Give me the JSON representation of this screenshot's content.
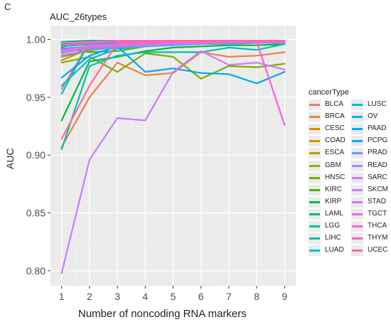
{
  "panel_letter": "C",
  "chart_data": {
    "type": "line",
    "title": "AUC_26types",
    "xlabel": "Number of noncoding RNA markers",
    "ylabel": "AUC",
    "x": [
      1,
      2,
      3,
      4,
      5,
      6,
      7,
      8,
      9
    ],
    "xlim": [
      0.6,
      9.4
    ],
    "ylim": [
      0.787,
      1.012
    ],
    "yticks": [
      0.8,
      0.85,
      0.9,
      0.95,
      1.0
    ],
    "ytick_labels": [
      "0.80",
      "0.85",
      "0.90",
      "0.95",
      "1.00"
    ],
    "grid": true,
    "background": "#ebebeb",
    "legend_title": "cancerType",
    "legend_position": "right",
    "series": [
      {
        "name": "BLCA",
        "color": "#F8766D",
        "values": [
          0.957,
          0.998,
          0.999,
          0.999,
          0.999,
          0.999,
          0.999,
          0.999,
          0.999
        ]
      },
      {
        "name": "BRCA",
        "color": "#ED813E",
        "values": [
          0.907,
          0.95,
          0.98,
          0.969,
          0.971,
          0.989,
          0.985,
          0.986,
          0.989
        ]
      },
      {
        "name": "CESC",
        "color": "#DE8C00",
        "values": [
          0.985,
          0.99,
          0.996,
          0.995,
          0.997,
          0.997,
          0.997,
          0.998,
          0.998
        ]
      },
      {
        "name": "COAD",
        "color": "#CD9600",
        "values": [
          0.988,
          0.993,
          0.995,
          0.996,
          0.997,
          0.997,
          0.998,
          0.998,
          0.998
        ]
      },
      {
        "name": "ESCA",
        "color": "#B79F00",
        "values": [
          0.982,
          0.992,
          0.994,
          0.995,
          0.996,
          0.997,
          0.997,
          0.998,
          0.998
        ]
      },
      {
        "name": "GBM",
        "color": "#9DA700",
        "values": [
          0.99,
          0.995,
          0.996,
          0.997,
          0.997,
          0.998,
          0.998,
          0.998,
          0.998
        ]
      },
      {
        "name": "HNSC",
        "color": "#7CAE00",
        "values": [
          0.98,
          0.985,
          0.972,
          0.988,
          0.985,
          0.966,
          0.977,
          0.976,
          0.979
        ]
      },
      {
        "name": "KIRC",
        "color": "#49B500",
        "values": [
          0.993,
          0.989,
          0.99,
          0.994,
          0.996,
          0.996,
          0.997,
          0.997,
          0.998
        ]
      },
      {
        "name": "KIRP",
        "color": "#00BA38",
        "values": [
          0.93,
          0.981,
          0.985,
          0.99,
          0.993,
          0.994,
          0.995,
          0.995,
          0.996
        ]
      },
      {
        "name": "LAML",
        "color": "#00BE67",
        "values": [
          0.998,
          0.999,
          0.999,
          0.999,
          0.999,
          0.999,
          0.999,
          0.999,
          0.999
        ]
      },
      {
        "name": "LGG",
        "color": "#00C08B",
        "values": [
          0.994,
          0.996,
          0.997,
          0.997,
          0.998,
          0.998,
          0.998,
          0.998,
          0.998
        ]
      },
      {
        "name": "LIHC",
        "color": "#00C1A9",
        "values": [
          0.905,
          0.977,
          0.986,
          0.989,
          0.989,
          0.989,
          0.993,
          0.991,
          0.996
        ]
      },
      {
        "name": "LUAD",
        "color": "#00BFC4",
        "values": [
          0.953,
          0.998,
          0.999,
          0.999,
          0.999,
          0.999,
          0.999,
          0.999,
          0.999
        ]
      },
      {
        "name": "LUSC",
        "color": "#00BBDB",
        "values": [
          0.96,
          0.983,
          0.992,
          0.994,
          0.995,
          0.996,
          0.997,
          0.997,
          0.997
        ]
      },
      {
        "name": "OV",
        "color": "#00B4EF",
        "values": [
          0.996,
          0.998,
          0.998,
          0.999,
          0.999,
          0.999,
          0.999,
          0.999,
          0.999
        ]
      },
      {
        "name": "PAAD",
        "color": "#00A9FF",
        "values": [
          0.992,
          0.994,
          0.996,
          0.997,
          0.997,
          0.998,
          0.998,
          0.998,
          0.998
        ]
      },
      {
        "name": "PCPG",
        "color": "#00A5FF",
        "values": [
          0.967,
          0.986,
          0.994,
          0.972,
          0.975,
          0.971,
          0.97,
          0.962,
          0.972
        ]
      },
      {
        "name": "PRAD",
        "color": "#619CFF",
        "values": [
          0.986,
          0.991,
          0.993,
          0.994,
          0.995,
          0.996,
          0.996,
          0.997,
          0.997
        ]
      },
      {
        "name": "READ",
        "color": "#8F91FF",
        "values": [
          0.991,
          0.993,
          0.994,
          0.995,
          0.996,
          0.996,
          0.997,
          0.997,
          0.997
        ]
      },
      {
        "name": "SARC",
        "color": "#B983FF",
        "values": [
          0.989,
          0.995,
          0.996,
          0.997,
          0.997,
          0.998,
          0.998,
          0.998,
          0.998
        ]
      },
      {
        "name": "SKCM",
        "color": "#C77CFF",
        "values": [
          0.798,
          0.896,
          0.932,
          0.93,
          0.972,
          0.99,
          0.978,
          0.98,
          0.974
        ]
      },
      {
        "name": "STAD",
        "color": "#DE71F9",
        "values": [
          0.991,
          0.994,
          0.995,
          0.996,
          0.997,
          0.997,
          0.998,
          0.998,
          0.998
        ]
      },
      {
        "name": "TGCT",
        "color": "#F066EA",
        "values": [
          0.997,
          0.998,
          0.999,
          0.999,
          0.999,
          0.999,
          0.999,
          0.999,
          0.999
        ]
      },
      {
        "name": "THCA",
        "color": "#FB61D7",
        "values": [
          0.988,
          0.993,
          0.995,
          0.997,
          0.998,
          0.998,
          0.998,
          0.998,
          0.926
        ]
      },
      {
        "name": "THYM",
        "color": "#FF62BC",
        "values": [
          0.995,
          0.997,
          0.998,
          0.998,
          0.999,
          0.999,
          0.999,
          0.999,
          0.999
        ]
      },
      {
        "name": "UCEC",
        "color": "#FF6A98",
        "values": [
          0.914,
          0.96,
          0.997,
          0.996,
          0.998,
          0.998,
          0.998,
          0.998,
          0.998
        ]
      }
    ]
  }
}
